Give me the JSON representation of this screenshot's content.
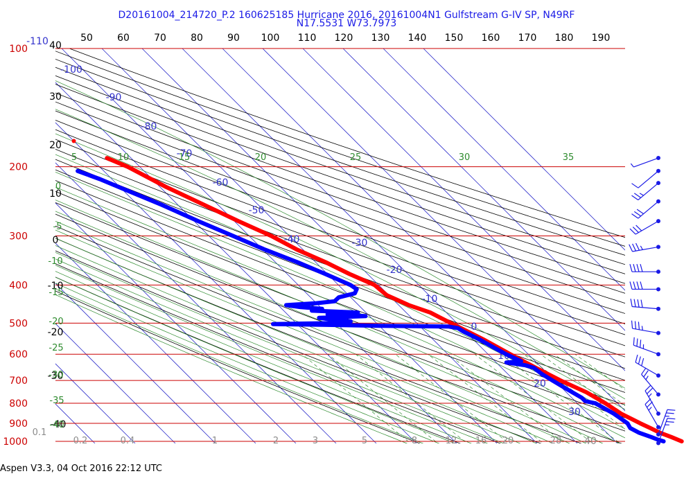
{
  "header": {
    "line1": "D20161004_214720_P.2 160625185 Hurricane 2016, 20161004N1 Gulfstream G-IV SP, N49RF",
    "line2": "N17.5531 W73.7973"
  },
  "footer": {
    "text": "Aspen V3.3, 04 Oct 2016  22:12 UTC"
  },
  "colors": {
    "temperature": "#ff0000",
    "dewpoint": "#0000ff",
    "isobar": "#cc0000",
    "dry_adiabat": "#000000",
    "moist_adiabat": "#2e8b2e",
    "isotherm": "#3333cc",
    "mixing_ratio": "#2e8b2e",
    "wind_barb": "#1a1ae6"
  },
  "chart_data": {
    "type": "skew-t log-p",
    "pressure_axis": {
      "labels": [
        "100",
        "200",
        "300",
        "400",
        "500",
        "600",
        "700",
        "800",
        "900",
        "1000"
      ],
      "values": [
        100,
        200,
        300,
        400,
        500,
        600,
        700,
        800,
        900,
        1000
      ],
      "range": [
        100,
        1050
      ]
    },
    "top_axis_labels": [
      "50",
      "60",
      "70",
      "80",
      "90",
      "100",
      "110",
      "120",
      "130",
      "140",
      "150",
      "160",
      "170",
      "180",
      "190"
    ],
    "isotherm_labels": [
      "-110",
      "-100",
      "-90",
      "-80",
      "-70",
      "-60",
      "-50",
      "-40",
      "-30",
      "-20",
      "-10",
      "0",
      "10",
      "20",
      "30",
      "40"
    ],
    "dry_adiabat_labels": [
      "40",
      "30",
      "20",
      "10",
      "0",
      "-10",
      "-20",
      "-30",
      "-40"
    ],
    "moist_adiabat_labels": [
      "5",
      "10",
      "15",
      "20",
      "25",
      "30",
      "35",
      "0",
      "-5",
      "-10",
      "-15",
      "-20",
      "-25",
      "-30",
      "-35",
      "-40"
    ],
    "mixing_ratio_labels": [
      "0.1",
      "0.2",
      "0.4",
      "1",
      "2",
      "3",
      "5",
      "8",
      "12",
      "16",
      "20",
      "28"
    ],
    "series": [
      {
        "name": "",
        "kind": "temperature",
        "points": [
          [
            1000,
            26.5
          ],
          [
            975,
            25.0
          ],
          [
            950,
            23.2
          ],
          [
            925,
            22.0
          ],
          [
            900,
            20.7
          ],
          [
            850,
            18.3
          ],
          [
            800,
            17.0
          ],
          [
            750,
            15.0
          ],
          [
            700,
            11.5
          ],
          [
            650,
            8.5
          ],
          [
            600,
            5.5
          ],
          [
            550,
            2.5
          ],
          [
            500,
            -1.5
          ],
          [
            470,
            -4.0
          ],
          [
            450,
            -7.5
          ],
          [
            425,
            -10.5
          ],
          [
            400,
            -11.0
          ],
          [
            375,
            -14.5
          ],
          [
            350,
            -17.5
          ],
          [
            325,
            -21.5
          ],
          [
            300,
            -24.5
          ],
          [
            275,
            -29.0
          ],
          [
            250,
            -33.5
          ],
          [
            225,
            -38.5
          ],
          [
            200,
            -43.0
          ],
          [
            190,
            -46.0
          ]
        ]
      },
      {
        "name": "",
        "kind": "dewpoint",
        "points": [
          [
            1000,
            22.0
          ],
          [
            990,
            21.0
          ],
          [
            975,
            20.0
          ],
          [
            950,
            18.0
          ],
          [
            925,
            17.0
          ],
          [
            900,
            17.5
          ],
          [
            875,
            17.0
          ],
          [
            850,
            16.5
          ],
          [
            825,
            15.5
          ],
          [
            800,
            14.5
          ],
          [
            790,
            12.5
          ],
          [
            775,
            12.5
          ],
          [
            750,
            11.5
          ],
          [
            725,
            10.5
          ],
          [
            700,
            9.5
          ],
          [
            675,
            8.5
          ],
          [
            650,
            8.0
          ],
          [
            640,
            6.5
          ],
          [
            630,
            2.5
          ],
          [
            625,
            6.5
          ],
          [
            600,
            4.5
          ],
          [
            575,
            3.0
          ],
          [
            550,
            1.5
          ],
          [
            525,
            -0.5
          ],
          [
            515,
            -1.0
          ],
          [
            510,
            -3.0
          ],
          [
            508,
            -20.0
          ],
          [
            505,
            -34.0
          ],
          [
            503,
            -46.0
          ],
          [
            500,
            -30.0
          ],
          [
            495,
            -26.0
          ],
          [
            490,
            -30.0
          ],
          [
            485,
            -33.0
          ],
          [
            480,
            -21.0
          ],
          [
            475,
            -30.0
          ],
          [
            470,
            -22.0
          ],
          [
            465,
            -33.0
          ],
          [
            460,
            -30.0
          ],
          [
            455,
            -35.0
          ],
          [
            450,
            -38.0
          ],
          [
            445,
            -30.0
          ],
          [
            440,
            -25.0
          ],
          [
            430,
            -23.0
          ],
          [
            420,
            -18.0
          ],
          [
            410,
            -16.5
          ],
          [
            400,
            -17.0
          ],
          [
            375,
            -20.5
          ],
          [
            350,
            -24.5
          ],
          [
            325,
            -29.5
          ],
          [
            300,
            -34.0
          ],
          [
            275,
            -39.0
          ],
          [
            250,
            -44.0
          ],
          [
            230,
            -49.0
          ],
          [
            215,
            -53.0
          ],
          [
            205,
            -56.5
          ]
        ]
      }
    ],
    "extra_point": {
      "pressure": 172,
      "temperature": -50.0
    },
    "wind_barbs": [
      {
        "p": 190,
        "speed": 5,
        "dir": 250
      },
      {
        "p": 205,
        "speed": 10,
        "dir": 230
      },
      {
        "p": 220,
        "speed": 25,
        "dir": 230
      },
      {
        "p": 245,
        "speed": 30,
        "dir": 230
      },
      {
        "p": 275,
        "speed": 30,
        "dir": 240
      },
      {
        "p": 320,
        "speed": 35,
        "dir": 260
      },
      {
        "p": 370,
        "speed": 40,
        "dir": 270
      },
      {
        "p": 410,
        "speed": 40,
        "dir": 270
      },
      {
        "p": 460,
        "speed": 40,
        "dir": 275
      },
      {
        "p": 530,
        "speed": 35,
        "dir": 280
      },
      {
        "p": 600,
        "speed": 35,
        "dir": 290
      },
      {
        "p": 680,
        "speed": 30,
        "dir": 300
      },
      {
        "p": 760,
        "speed": 25,
        "dir": 320
      },
      {
        "p": 850,
        "speed": 25,
        "dir": 330
      },
      {
        "p": 920,
        "speed": 25,
        "dir": 330
      },
      {
        "p": 960,
        "speed": 25,
        "dir": 20
      },
      {
        "p": 1010,
        "speed": 25,
        "dir": 20
      }
    ]
  }
}
